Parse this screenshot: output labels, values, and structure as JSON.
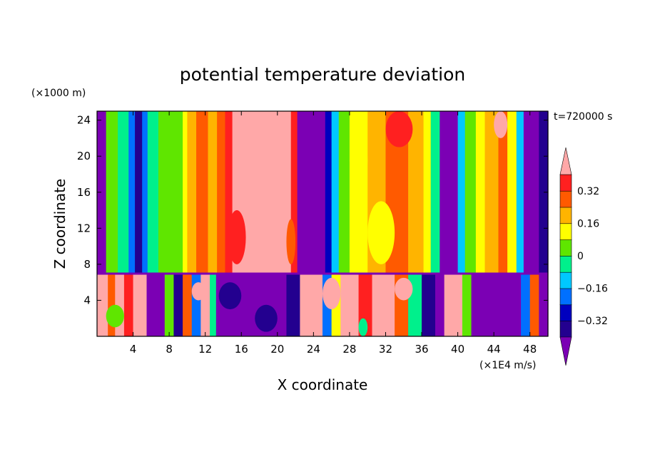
{
  "chart_data": {
    "type": "heatmap",
    "title": "potential temperature deviation",
    "xlabel": "X coordinate",
    "ylabel": "Z coordinate",
    "x_unit": "(×1E4 m/s)",
    "y_unit": "(×1000 m)",
    "time_label": "t=720000 s",
    "xlim": [
      0,
      50
    ],
    "ylim": [
      0,
      25
    ],
    "x_ticks": [
      4,
      8,
      12,
      16,
      20,
      24,
      28,
      32,
      36,
      40,
      44,
      48
    ],
    "y_ticks": [
      4,
      8,
      12,
      16,
      20,
      24
    ],
    "x_tick_labels": [
      "4",
      "8",
      "12",
      "16",
      "20",
      "24",
      "28",
      "32",
      "36",
      "40",
      "44",
      "48"
    ],
    "y_tick_labels": [
      "4",
      "8",
      "12",
      "16",
      "20",
      "24"
    ],
    "boundary_layer_top_z": 7,
    "upper_columns": [
      {
        "x0": 0.0,
        "x1": 1.0,
        "value": -0.44
      },
      {
        "x0": 1.0,
        "x1": 2.3,
        "value": 0.03
      },
      {
        "x0": 2.3,
        "x1": 3.5,
        "value": -0.08
      },
      {
        "x0": 3.5,
        "x1": 4.2,
        "value": -0.22
      },
      {
        "x0": 4.2,
        "x1": 5.0,
        "value": -0.36
      },
      {
        "x0": 5.0,
        "x1": 5.6,
        "value": -0.22
      },
      {
        "x0": 5.6,
        "x1": 6.8,
        "value": -0.08
      },
      {
        "x0": 6.8,
        "x1": 9.5,
        "value": 0.03
      },
      {
        "x0": 9.5,
        "x1": 10.0,
        "value": 0.13
      },
      {
        "x0": 10.0,
        "x1": 11.0,
        "value": 0.18
      },
      {
        "x0": 11.0,
        "x1": 12.3,
        "value": 0.27
      },
      {
        "x0": 12.3,
        "x1": 13.3,
        "value": 0.18
      },
      {
        "x0": 13.3,
        "x1": 14.2,
        "value": 0.27
      },
      {
        "x0": 14.2,
        "x1": 15.0,
        "value": 0.33
      },
      {
        "x0": 15.0,
        "x1": 21.5,
        "value": 0.44
      },
      {
        "x0": 21.5,
        "x1": 22.2,
        "value": 0.33
      },
      {
        "x0": 22.2,
        "x1": 25.3,
        "value": -0.44
      },
      {
        "x0": 25.3,
        "x1": 26.0,
        "value": -0.28
      },
      {
        "x0": 26.0,
        "x1": 26.8,
        "value": -0.12
      },
      {
        "x0": 26.8,
        "x1": 28.0,
        "value": 0.03
      },
      {
        "x0": 28.0,
        "x1": 30.0,
        "value": 0.13
      },
      {
        "x0": 30.0,
        "x1": 32.0,
        "value": 0.18
      },
      {
        "x0": 32.0,
        "x1": 34.5,
        "value": 0.27
      },
      {
        "x0": 34.5,
        "x1": 36.2,
        "value": 0.22
      },
      {
        "x0": 36.2,
        "x1": 37.0,
        "value": 0.13
      },
      {
        "x0": 37.0,
        "x1": 38.0,
        "value": -0.08
      },
      {
        "x0": 38.0,
        "x1": 40.0,
        "value": -0.44
      },
      {
        "x0": 40.0,
        "x1": 40.8,
        "value": -0.12
      },
      {
        "x0": 40.8,
        "x1": 42.0,
        "value": 0.03
      },
      {
        "x0": 42.0,
        "x1": 43.0,
        "value": 0.13
      },
      {
        "x0": 43.0,
        "x1": 44.5,
        "value": 0.22
      },
      {
        "x0": 44.5,
        "x1": 45.5,
        "value": 0.27
      },
      {
        "x0": 45.5,
        "x1": 46.5,
        "value": 0.13
      },
      {
        "x0": 46.5,
        "x1": 47.3,
        "value": -0.12
      },
      {
        "x0": 47.3,
        "x1": 49.0,
        "value": -0.44
      },
      {
        "x0": 49.0,
        "x1": 50.0,
        "value": -0.36
      }
    ],
    "upper_blobs": [
      {
        "x0": 16.0,
        "x1": 21.0,
        "z0": 14.0,
        "z1": 25.0,
        "value": 0.44
      },
      {
        "x0": 14.5,
        "x1": 16.5,
        "z0": 8.0,
        "z1": 14.0,
        "value": 0.33
      },
      {
        "x0": 21.0,
        "x1": 22.0,
        "z0": 8.0,
        "z1": 13.0,
        "value": 0.27
      },
      {
        "x0": 32.0,
        "x1": 35.0,
        "z0": 21.0,
        "z1": 25.0,
        "value": 0.33
      },
      {
        "x0": 30.0,
        "x1": 33.0,
        "z0": 8.0,
        "z1": 15.0,
        "value": 0.13
      },
      {
        "x0": 44.0,
        "x1": 45.5,
        "z0": 22.0,
        "z1": 25.0,
        "value": 0.44
      },
      {
        "x0": 28.0,
        "x1": 30.0,
        "z0": 16.0,
        "z1": 23.0,
        "value": 0.08
      }
    ],
    "lower_columns": [
      {
        "x0": 0.0,
        "x1": 1.2,
        "value": 0.44
      },
      {
        "x0": 1.2,
        "x1": 2.0,
        "value": 0.27
      },
      {
        "x0": 2.0,
        "x1": 3.0,
        "value": 0.44
      },
      {
        "x0": 3.0,
        "x1": 4.0,
        "value": 0.33
      },
      {
        "x0": 4.0,
        "x1": 5.5,
        "value": 0.44
      },
      {
        "x0": 5.5,
        "x1": 7.5,
        "value": -0.44
      },
      {
        "x0": 7.5,
        "x1": 8.5,
        "value": 0.03
      },
      {
        "x0": 8.5,
        "x1": 9.5,
        "value": -0.36
      },
      {
        "x0": 9.5,
        "x1": 10.5,
        "value": 0.27
      },
      {
        "x0": 10.5,
        "x1": 11.5,
        "value": -0.22
      },
      {
        "x0": 11.5,
        "x1": 12.5,
        "value": 0.44
      },
      {
        "x0": 12.5,
        "x1": 13.2,
        "value": -0.08
      },
      {
        "x0": 13.2,
        "x1": 21.0,
        "value": -0.44
      },
      {
        "x0": 21.0,
        "x1": 22.5,
        "value": -0.36
      },
      {
        "x0": 22.5,
        "x1": 25.0,
        "value": 0.44
      },
      {
        "x0": 25.0,
        "x1": 26.0,
        "value": -0.22
      },
      {
        "x0": 26.0,
        "x1": 27.0,
        "value": 0.13
      },
      {
        "x0": 27.0,
        "x1": 29.0,
        "value": 0.44
      },
      {
        "x0": 29.0,
        "x1": 30.5,
        "value": 0.33
      },
      {
        "x0": 30.5,
        "x1": 33.0,
        "value": 0.44
      },
      {
        "x0": 33.0,
        "x1": 34.5,
        "value": 0.27
      },
      {
        "x0": 34.5,
        "x1": 36.0,
        "value": -0.08
      },
      {
        "x0": 36.0,
        "x1": 37.5,
        "value": -0.36
      },
      {
        "x0": 37.5,
        "x1": 38.5,
        "value": -0.44
      },
      {
        "x0": 38.5,
        "x1": 40.5,
        "value": 0.44
      },
      {
        "x0": 40.5,
        "x1": 41.5,
        "value": 0.03
      },
      {
        "x0": 41.5,
        "x1": 47.0,
        "value": -0.44
      },
      {
        "x0": 47.0,
        "x1": 48.0,
        "value": -0.22
      },
      {
        "x0": 48.0,
        "x1": 49.0,
        "value": 0.27
      },
      {
        "x0": 49.0,
        "x1": 50.0,
        "value": -0.44
      }
    ],
    "lower_blobs": [
      {
        "x0": 13.5,
        "x1": 16.0,
        "z0": 3.0,
        "z1": 6.0,
        "value": -0.36
      },
      {
        "x0": 17.5,
        "x1": 20.0,
        "z0": 0.5,
        "z1": 3.5,
        "value": -0.36
      },
      {
        "x0": 1.0,
        "x1": 3.0,
        "z0": 1.0,
        "z1": 3.5,
        "value": 0.03
      },
      {
        "x0": 25.0,
        "x1": 27.0,
        "z0": 3.0,
        "z1": 6.5,
        "value": 0.44
      },
      {
        "x0": 29.0,
        "x1": 30.0,
        "z0": 0.0,
        "z1": 2.0,
        "value": -0.08
      },
      {
        "x0": 33.0,
        "x1": 35.0,
        "z0": 4.0,
        "z1": 6.5,
        "value": 0.44
      },
      {
        "x0": 10.5,
        "x1": 12.0,
        "z0": 4.0,
        "z1": 6.0,
        "value": 0.44
      }
    ],
    "colorbar": {
      "levels": [
        -0.4,
        -0.32,
        -0.24,
        -0.16,
        -0.08,
        0,
        0.08,
        0.16,
        0.24,
        0.32,
        0.4
      ],
      "labeled_levels": [
        -0.32,
        -0.16,
        0,
        0.16,
        0.32
      ],
      "labels": [
        "−0.32",
        "−0.16",
        "0",
        "0.16",
        "0.32"
      ],
      "colors": [
        "#7b00b4",
        "#23008f",
        "#0000bf",
        "#0070ff",
        "#00c8ff",
        "#00f08c",
        "#5fe600",
        "#ffff00",
        "#ffb400",
        "#ff5a00",
        "#ff2020",
        "#ffa8a8"
      ]
    }
  }
}
